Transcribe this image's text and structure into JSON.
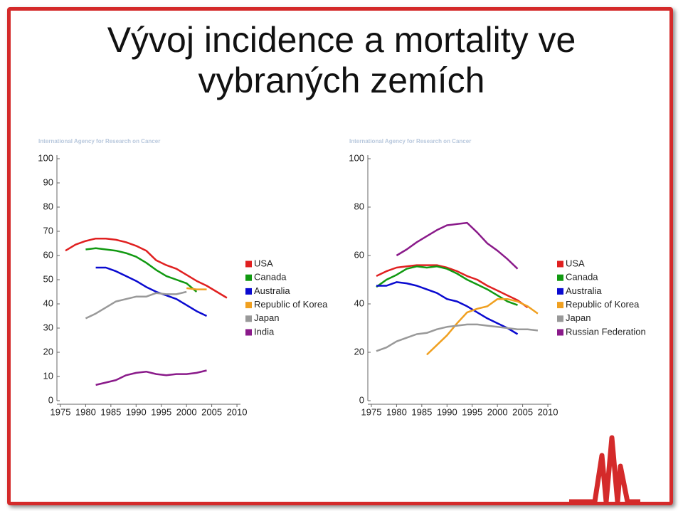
{
  "slide": {
    "title": "Vývoj incidence a mortality ve vybraných zemích"
  },
  "chart_data": [
    {
      "type": "line",
      "source": "International Agency for Research on Cancer",
      "x": [
        1976,
        1978,
        1980,
        1982,
        1984,
        1986,
        1988,
        1990,
        1992,
        1994,
        1996,
        1998,
        2000,
        2002,
        2004,
        2006,
        2008
      ],
      "xlim": [
        1974.3,
        2010.7
      ],
      "xticks": [
        1975,
        1980,
        1985,
        1990,
        1995,
        2000,
        2005,
        2010
      ],
      "ylim": [
        0,
        100
      ],
      "yticks": [
        0,
        10,
        20,
        30,
        40,
        50,
        60,
        70,
        80,
        90,
        100
      ],
      "grid": false,
      "legend": "right",
      "series": [
        {
          "name": "USA",
          "color": "#e02020",
          "values": [
            62,
            64.5,
            66,
            67,
            67,
            66.5,
            65.5,
            64,
            62,
            58,
            56,
            54.5,
            52,
            49.5,
            47.5,
            45,
            42.5
          ]
        },
        {
          "name": "Canada",
          "color": "#119911",
          "values": [
            null,
            null,
            62.5,
            63,
            62.5,
            62,
            61,
            59.5,
            57,
            54,
            51.5,
            50,
            48.5,
            45,
            null,
            null,
            null
          ]
        },
        {
          "name": "Australia",
          "color": "#0a0ad0",
          "values": [
            null,
            null,
            null,
            55,
            55,
            53.5,
            51.5,
            49.5,
            47,
            45,
            43.5,
            42,
            39.5,
            37,
            35,
            null,
            null
          ]
        },
        {
          "name": "Republic of Korea",
          "color": "#f0a020",
          "values": [
            null,
            null,
            null,
            null,
            null,
            null,
            null,
            null,
            null,
            null,
            null,
            null,
            46.5,
            46,
            46,
            null,
            null
          ]
        },
        {
          "name": "Japan",
          "color": "#999999",
          "values": [
            null,
            null,
            34,
            36,
            38.5,
            41,
            42,
            43,
            43,
            44.5,
            44,
            44,
            45,
            null,
            null,
            null,
            null
          ]
        },
        {
          "name": "India",
          "color": "#8a1a8a",
          "values": [
            null,
            null,
            null,
            6.5,
            7.5,
            8.5,
            10.5,
            11.5,
            12,
            11,
            10.5,
            11,
            11,
            11.5,
            12.5,
            null,
            null
          ]
        }
      ]
    },
    {
      "type": "line",
      "source": "International Agency for Research on Cancer",
      "x": [
        1976,
        1978,
        1980,
        1982,
        1984,
        1986,
        1988,
        1990,
        1992,
        1994,
        1996,
        1998,
        2000,
        2002,
        2004,
        2006,
        2008
      ],
      "xlim": [
        1974.3,
        2010.7
      ],
      "xticks": [
        1975,
        1980,
        1985,
        1990,
        1995,
        2000,
        2005,
        2010
      ],
      "ylim": [
        0,
        100
      ],
      "yticks": [
        0,
        20,
        40,
        60,
        80,
        100
      ],
      "grid": false,
      "legend": "right",
      "series": [
        {
          "name": "USA",
          "color": "#e02020",
          "values": [
            51.5,
            53.5,
            55,
            55.5,
            56,
            56,
            56,
            55,
            53.5,
            51.5,
            50,
            47.5,
            45.5,
            43.5,
            41.5,
            38.5,
            null
          ]
        },
        {
          "name": "Canada",
          "color": "#119911",
          "values": [
            47,
            50,
            52,
            54.5,
            55.5,
            55,
            55.5,
            54.5,
            52.5,
            50,
            48,
            46,
            43.5,
            41,
            39.5,
            null,
            null
          ]
        },
        {
          "name": "Australia",
          "color": "#0a0ad0",
          "values": [
            47.5,
            47.5,
            49,
            48.5,
            47.5,
            46,
            44.5,
            42,
            41,
            39,
            36.5,
            34,
            32,
            30,
            27.5,
            null,
            null
          ]
        },
        {
          "name": "Republic of Korea",
          "color": "#f0a020",
          "values": [
            null,
            null,
            null,
            null,
            null,
            19,
            23,
            27,
            32,
            36.5,
            38,
            39,
            42,
            42,
            41,
            39,
            36
          ]
        },
        {
          "name": "Japan",
          "color": "#999999",
          "values": [
            20.5,
            22,
            24.5,
            26,
            27.5,
            28,
            29.5,
            30.5,
            31,
            31.5,
            31.5,
            31,
            30.5,
            30,
            29.5,
            29.5,
            29
          ]
        },
        {
          "name": "Russian Federation",
          "color": "#8a1a8a",
          "values": [
            null,
            null,
            60,
            62.5,
            65.5,
            68,
            70.5,
            72.5,
            73,
            73.5,
            69.5,
            65,
            62,
            58.5,
            54.5,
            null,
            null
          ]
        }
      ]
    }
  ]
}
